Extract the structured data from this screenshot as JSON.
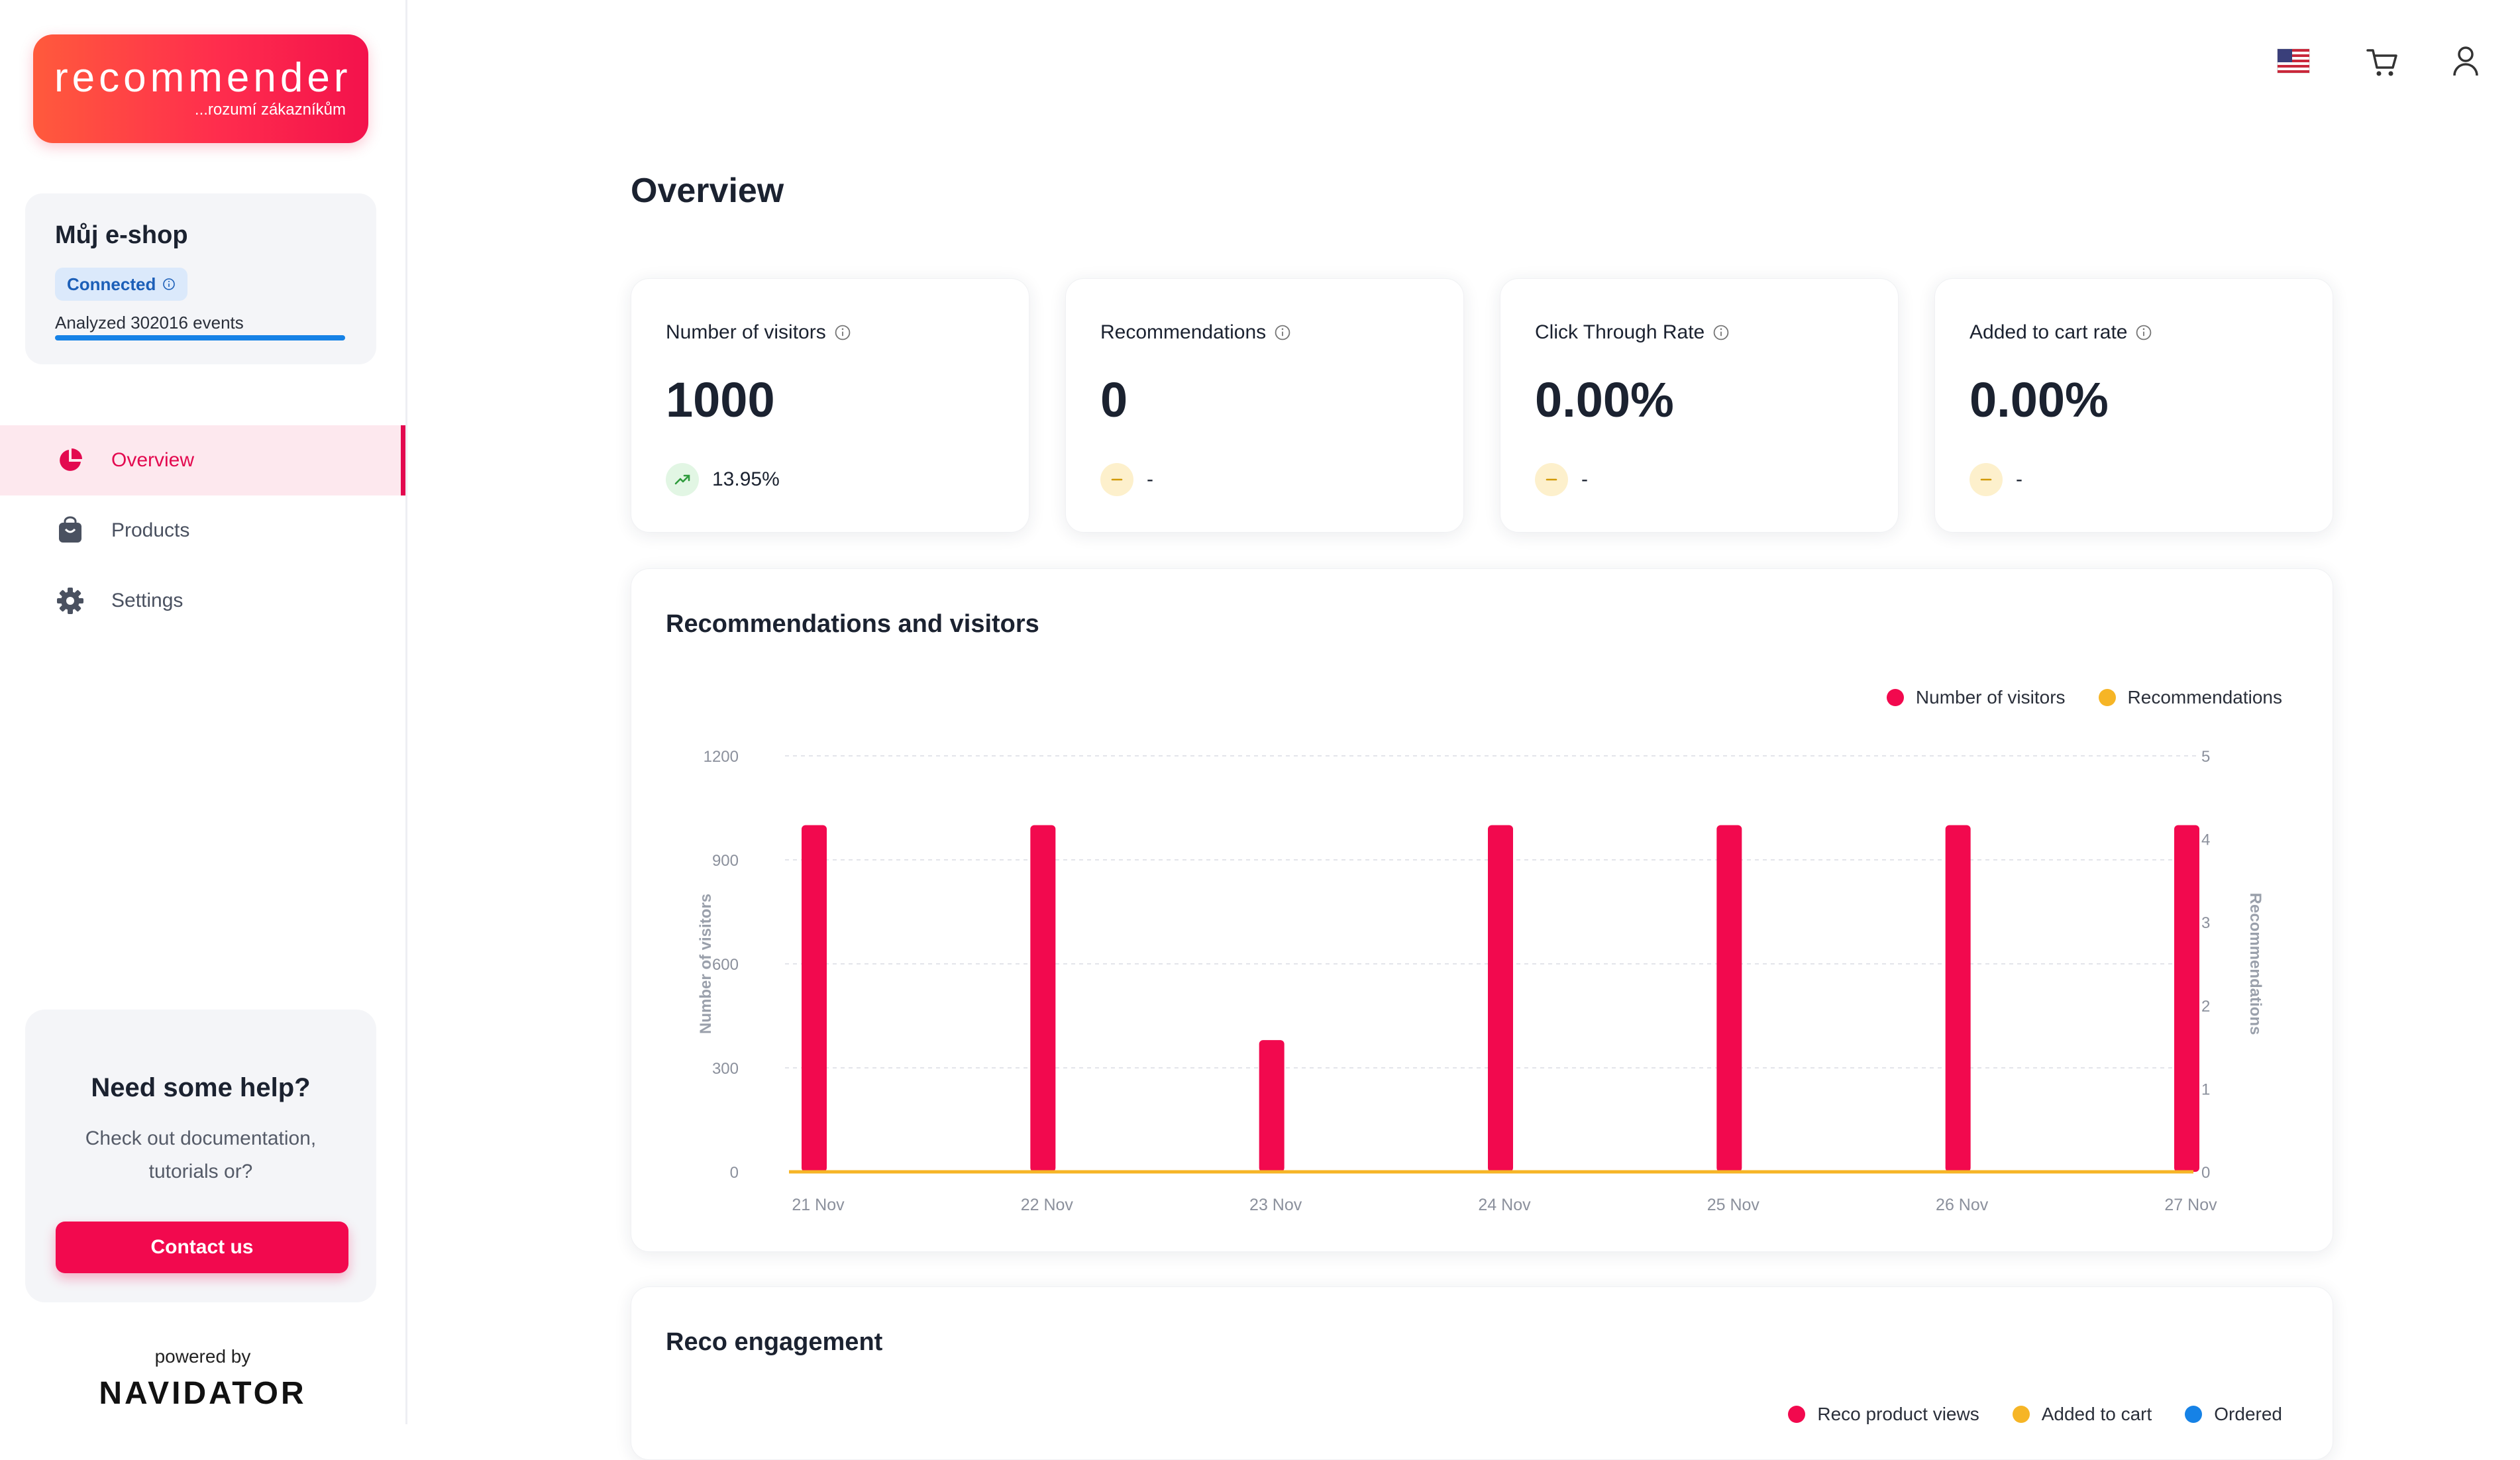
{
  "brand": {
    "name": "recommender",
    "tagline": "...rozumí zákazníkům"
  },
  "shop": {
    "name": "Můj e-shop",
    "status": "Connected",
    "events_text": "Analyzed 302016 events"
  },
  "nav": {
    "items": [
      {
        "label": "Overview",
        "icon": "pie-chart-icon",
        "active": true
      },
      {
        "label": "Products",
        "icon": "bag-icon",
        "active": false
      },
      {
        "label": "Settings",
        "icon": "gear-icon",
        "active": false
      }
    ]
  },
  "help": {
    "title": "Need some help?",
    "text": "Check out documentation, tutorials or?",
    "button": "Contact us"
  },
  "footer": {
    "powered_by": "powered by",
    "brand": "NAVIDATOR"
  },
  "page": {
    "title": "Overview"
  },
  "kpis": [
    {
      "title": "Number of visitors",
      "value": "1000",
      "delta": "13.95%",
      "trend": "up"
    },
    {
      "title": "Recommendations",
      "value": "0",
      "delta": "-",
      "trend": "neutral"
    },
    {
      "title": "Click Through Rate",
      "value": "0.00%",
      "delta": "-",
      "trend": "neutral"
    },
    {
      "title": "Added to cart rate",
      "value": "0.00%",
      "delta": "-",
      "trend": "neutral"
    }
  ],
  "colors": {
    "accent": "#f2094e",
    "visitors": "#f2094e",
    "recommendations": "#f6b526",
    "ordered": "#1682e6",
    "trend_up": "#2e9b3c"
  },
  "chart_data": [
    {
      "type": "bar",
      "title": "Recommendations and visitors",
      "categories": [
        "21 Nov",
        "22 Nov",
        "23 Nov",
        "24 Nov",
        "25 Nov",
        "26 Nov",
        "27 Nov"
      ],
      "series": [
        {
          "name": "Number of visitors",
          "type": "bar",
          "axis": "left",
          "color": "#f2094e",
          "values": [
            1000,
            1000,
            380,
            1000,
            1000,
            1000,
            1000
          ]
        },
        {
          "name": "Recommendations",
          "type": "line",
          "axis": "right",
          "color": "#f6b526",
          "values": [
            0,
            0,
            0,
            0,
            0,
            0,
            0
          ]
        }
      ],
      "ylabel": "Number of visitors",
      "y2label": "Recommendations",
      "ylim": [
        0,
        1200
      ],
      "y2lim": [
        0,
        5
      ],
      "yticks": [
        0,
        300,
        600,
        900,
        1200
      ],
      "y2ticks": [
        0,
        1,
        2,
        3,
        4,
        5
      ],
      "grid": true,
      "legend": "top-right"
    },
    {
      "type": "bar",
      "title": "Reco engagement",
      "series": [
        {
          "name": "Reco product views",
          "color": "#f2094e"
        },
        {
          "name": "Added to cart",
          "color": "#f6b526"
        },
        {
          "name": "Ordered",
          "color": "#1682e6"
        }
      ],
      "legend": "top-right"
    }
  ],
  "topbar": {
    "icons": [
      "us-flag-icon",
      "cart-icon",
      "user-icon"
    ]
  }
}
